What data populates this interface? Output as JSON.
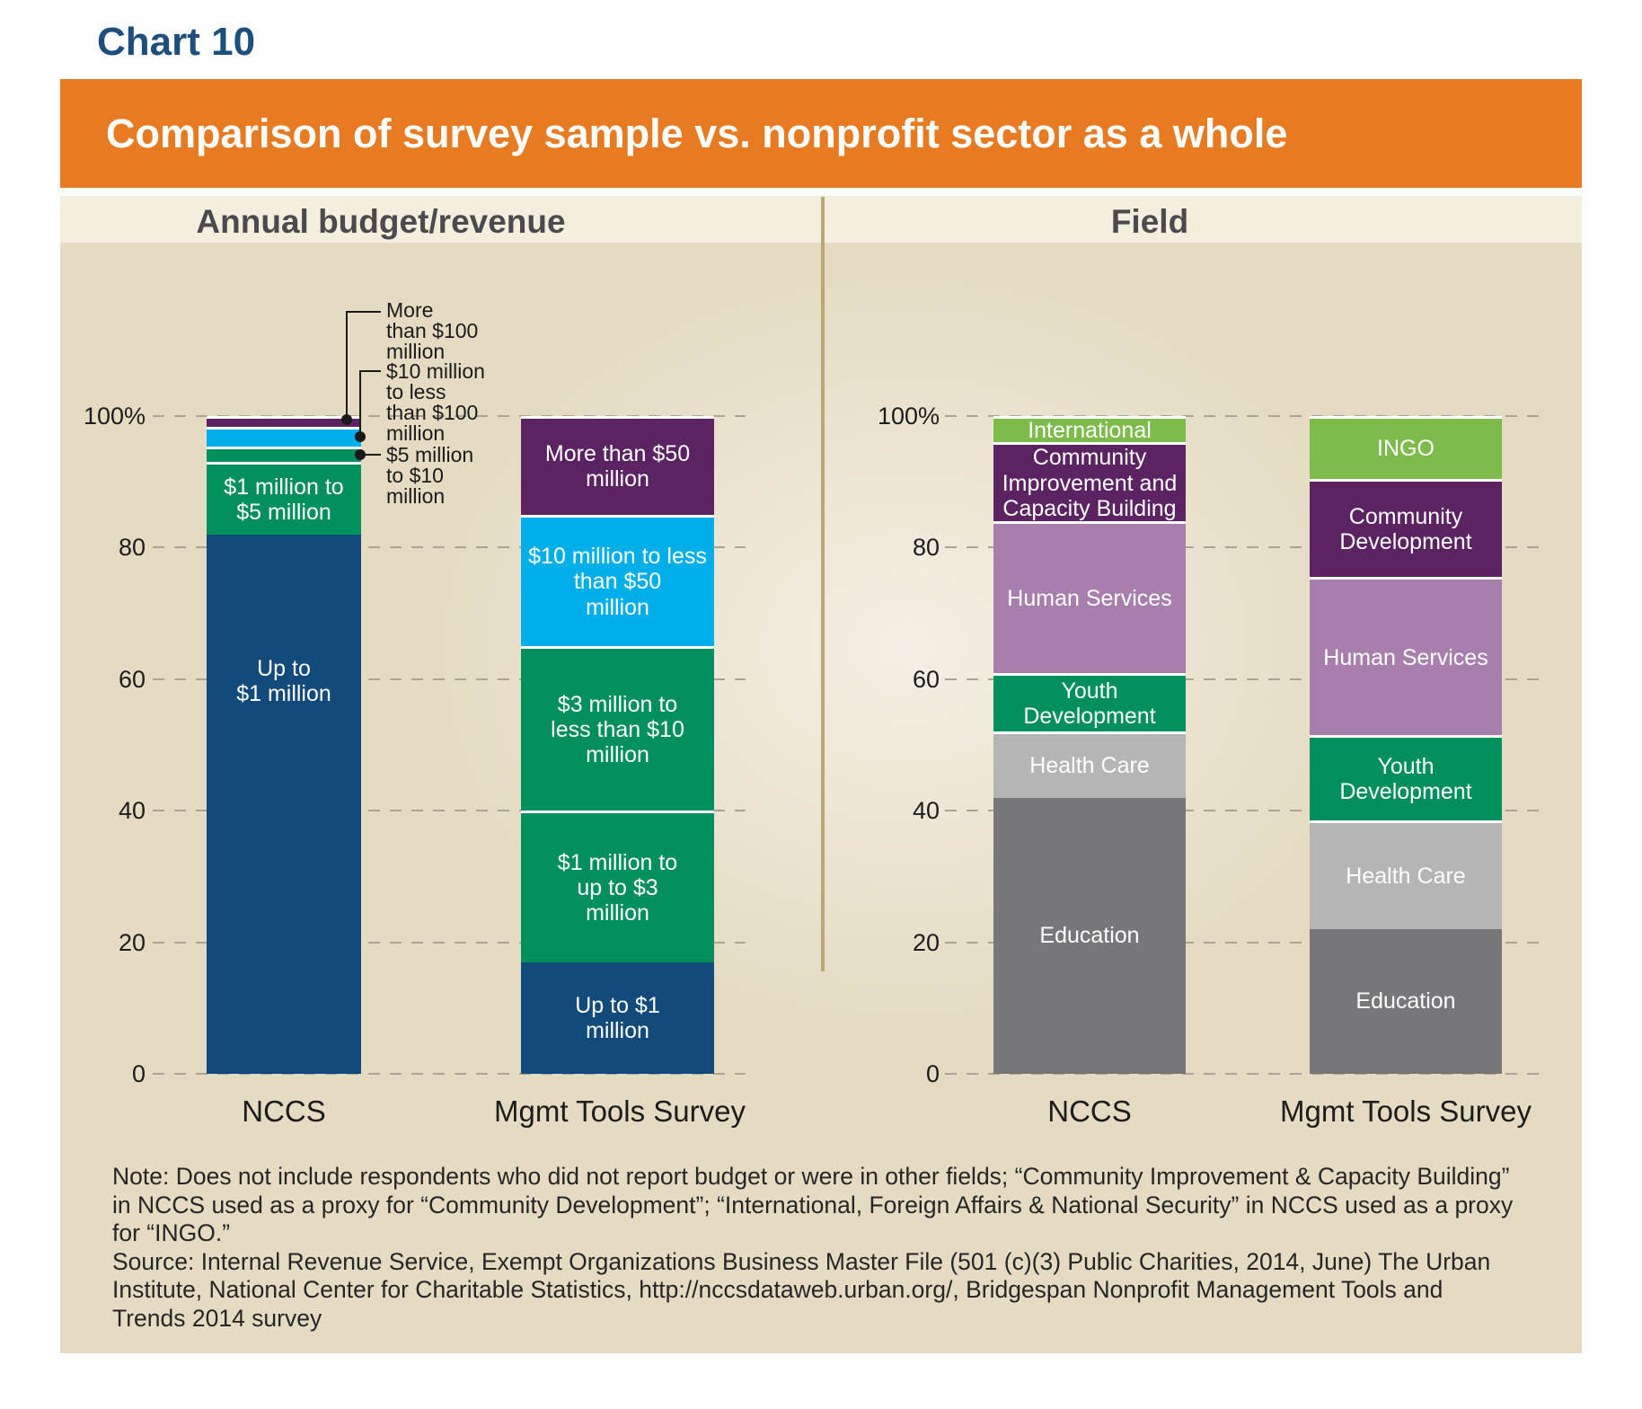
{
  "title": "Chart 10",
  "banner": {
    "text": "Comparison of survey sample vs. nonprofit sector as a whole",
    "bg_color": "#E87A22"
  },
  "panel_headers": {
    "budget": "Annual budget/revenue",
    "field": "Field"
  },
  "y_axis": {
    "tick_labels": [
      "100%",
      "80",
      "60",
      "40",
      "20",
      "0"
    ],
    "tick_values": [
      100,
      80,
      60,
      40,
      20,
      0
    ],
    "unit": "percent",
    "grid": "dashed"
  },
  "x_axis": {
    "categories": [
      "NCCS",
      "Mgmt Tools Survey"
    ]
  },
  "colors": {
    "navy": "#124A7C",
    "green": "#008F5D",
    "cyan": "#00AEEA",
    "purple": "#5C2363",
    "light_green": "#7CBB4C",
    "mauve": "#A87FAC",
    "light_gray": "#B5B5B5",
    "dark_gray": "#77777A",
    "banner_orange": "#E87A22",
    "title_blue": "#1d4e7e",
    "divider_tan": "#b9a877"
  },
  "chart_data": [
    {
      "type": "bar",
      "stacked": true,
      "title": "Annual budget/revenue",
      "categories": [
        "NCCS",
        "Mgmt Tools Survey"
      ],
      "ylim": [
        0,
        100
      ],
      "legend_position": "none",
      "segments_order": "bottom to top, values are percent of total",
      "bars": [
        {
          "category": "NCCS",
          "segments": [
            {
              "label": "Up to $1 million",
              "lines": [
                "Up to",
                "$1 million"
              ],
              "value": 82,
              "color": "#124A7C",
              "label_inside": true,
              "label_pos": "upper"
            },
            {
              "label": "$1 million to $5 million",
              "lines": [
                "$1 million to",
                "$5 million"
              ],
              "value": 11,
              "color": "#008F5D",
              "label_inside": true
            },
            {
              "label": "$5 million to $10 million",
              "lines": [],
              "value": 2.3,
              "color": "#008F5D",
              "label_inside": false
            },
            {
              "label": "$10 million to less than $100 million",
              "lines": [],
              "value": 3,
              "color": "#00AEEA",
              "label_inside": false
            },
            {
              "label": "More than $100 million",
              "lines": [],
              "value": 1.7,
              "color": "#5C2363",
              "label_inside": false
            }
          ]
        },
        {
          "category": "Mgmt Tools Survey",
          "segments": [
            {
              "label": "Up to $1 million",
              "lines": [
                "Up to $1",
                "million"
              ],
              "value": 17,
              "color": "#124A7C",
              "label_inside": true
            },
            {
              "label": "$1 million to up to $3 million",
              "lines": [
                "$1 million to",
                "up to $3",
                "million"
              ],
              "value": 23,
              "color": "#008F5D",
              "label_inside": true
            },
            {
              "label": "$3 million to less than $10 million",
              "lines": [
                "$3 million to",
                "less than $10",
                "million"
              ],
              "value": 25,
              "color": "#008F5D",
              "label_inside": true
            },
            {
              "label": "$10 million to less than $50 million",
              "lines": [
                "$10 million to less",
                "than $50",
                "million"
              ],
              "value": 20,
              "color": "#00AEEA",
              "label_inside": true
            },
            {
              "label": "More than $50 million",
              "lines": [
                "More than $50",
                "million"
              ],
              "value": 15,
              "color": "#5C2363",
              "label_inside": true
            }
          ]
        }
      ],
      "callouts": [
        {
          "target": "More than $100 million",
          "lines": [
            "More",
            "than $100",
            "million"
          ]
        },
        {
          "target": "$10 million to less than $100 million",
          "lines": [
            "$10 million",
            "to less",
            "than $100",
            "million"
          ]
        },
        {
          "target": "$5 million to $10 million",
          "lines": [
            "$5 million",
            "to $10",
            "million"
          ]
        }
      ]
    },
    {
      "type": "bar",
      "stacked": true,
      "title": "Field",
      "categories": [
        "NCCS",
        "Mgmt Tools Survey"
      ],
      "ylim": [
        0,
        100
      ],
      "legend_position": "none",
      "segments_order": "bottom to top, values are percent of total",
      "bars": [
        {
          "category": "NCCS",
          "segments": [
            {
              "label": "Education",
              "lines": [
                "Education"
              ],
              "value": 42,
              "color": "#77777A",
              "label_inside": true
            },
            {
              "label": "Health Care",
              "lines": [
                "Health Care"
              ],
              "value": 10,
              "color": "#B5B5B5",
              "label_inside": true
            },
            {
              "label": "Youth Development",
              "lines": [
                "Youth",
                "Development"
              ],
              "value": 9,
              "color": "#008F5D",
              "label_inside": true
            },
            {
              "label": "Human Services",
              "lines": [
                "Human Services"
              ],
              "value": 23,
              "color": "#A87FAC",
              "label_inside": true
            },
            {
              "label": "Community Improvement and Capacity Building",
              "lines": [
                "Community",
                "Improvement and",
                "Capacity Building"
              ],
              "value": 12,
              "color": "#5C2363",
              "label_inside": true
            },
            {
              "label": "International",
              "lines": [
                "International"
              ],
              "value": 4,
              "color": "#7CBB4C",
              "label_inside": true
            }
          ]
        },
        {
          "category": "Mgmt Tools Survey",
          "segments": [
            {
              "label": "Education",
              "lines": [
                "Education"
              ],
              "value": 22,
              "color": "#77777A",
              "label_inside": true
            },
            {
              "label": "Health Care",
              "lines": [
                "Health Care"
              ],
              "value": 16.5,
              "color": "#B5B5B5",
              "label_inside": true
            },
            {
              "label": "Youth Development",
              "lines": [
                "Youth",
                "Development"
              ],
              "value": 13,
              "color": "#008F5D",
              "label_inside": true
            },
            {
              "label": "Human Services",
              "lines": [
                "Human Services"
              ],
              "value": 24,
              "color": "#A87FAC",
              "label_inside": true
            },
            {
              "label": "Community Development",
              "lines": [
                "Community",
                "Development"
              ],
              "value": 15,
              "color": "#5C2363",
              "label_inside": true
            },
            {
              "label": "INGO",
              "lines": [
                "INGO"
              ],
              "value": 9.5,
              "color": "#7CBB4C",
              "label_inside": true
            }
          ]
        }
      ]
    }
  ],
  "footnote": {
    "note": "Note: Does not include respondents who did not report budget or were in other fields; “Community Improvement & Capacity Building” in NCCS used as a proxy for “Community Development”; “International, Foreign Affairs & National Security” in NCCS used as a proxy for “INGO.”",
    "source": "Source: Internal Revenue Service, Exempt Organizations Business Master File (501 (c)(3) Public Charities, 2014, June) The Urban Institute, National Center for Charitable Statistics, http://nccsdataweb.urban.org/, Bridgespan Nonprofit Management Tools and Trends 2014 survey"
  }
}
